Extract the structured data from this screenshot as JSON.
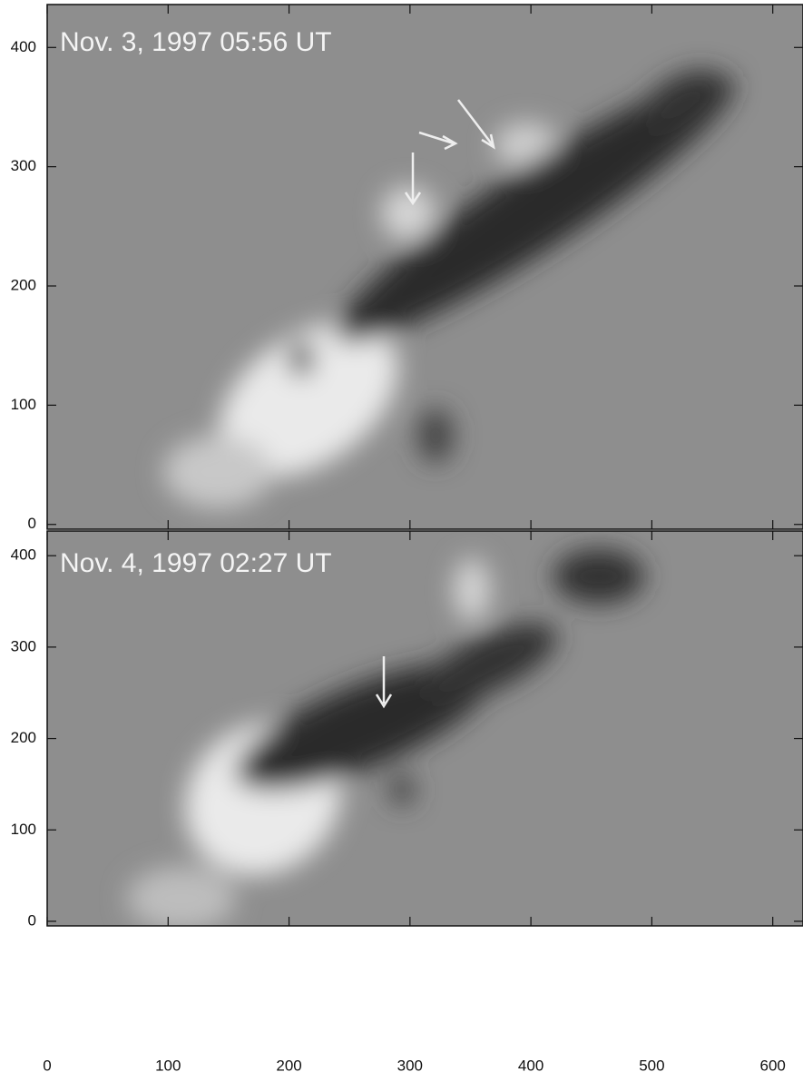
{
  "chart_data": [
    {
      "type": "image",
      "title": "Nov. 3, 1997 05:56 UT",
      "xlim": [
        0,
        625
      ],
      "ylim": [
        -4,
        436
      ],
      "xticks": [
        0,
        100,
        200,
        300,
        400,
        500,
        600
      ],
      "yticks": [
        0,
        100,
        200,
        300,
        400
      ]
    },
    {
      "type": "image",
      "title": "Nov. 4, 1997 02:27 UT",
      "xlim": [
        0,
        625
      ],
      "ylim": [
        -5,
        427
      ],
      "xticks": [
        0,
        100,
        200,
        300,
        400,
        500,
        600
      ],
      "yticks": [
        0,
        100,
        200,
        300,
        400
      ]
    }
  ]
}
